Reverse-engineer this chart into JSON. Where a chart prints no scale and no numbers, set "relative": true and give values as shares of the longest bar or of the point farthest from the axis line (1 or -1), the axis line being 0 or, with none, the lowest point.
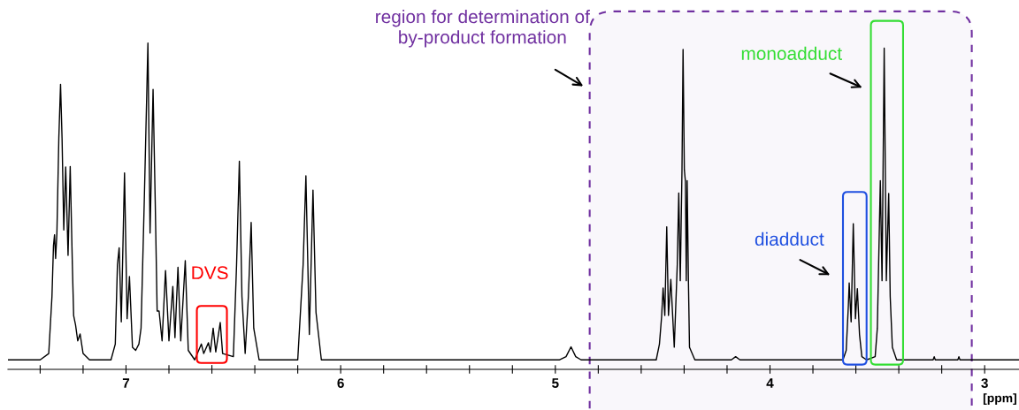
{
  "chart_data": {
    "type": "line",
    "relative": true,
    "xlabel": "[ppm]",
    "xlim": [
      7.55,
      2.84
    ],
    "xticks": [
      {
        "value": 7.4,
        "label": null
      },
      {
        "value": 7.2,
        "label": null
      },
      7,
      {
        "value": 6.8,
        "label": null
      },
      {
        "value": 6.6,
        "label": null
      },
      {
        "value": 6.4,
        "label": null
      },
      {
        "value": 6.2,
        "label": null
      },
      6,
      {
        "value": 5.8,
        "label": null
      },
      {
        "value": 5.6,
        "label": null
      },
      {
        "value": 5.4,
        "label": null
      },
      {
        "value": 5.2,
        "label": null
      },
      5,
      {
        "value": 4.8,
        "label": null
      },
      {
        "value": 4.6,
        "label": null
      },
      {
        "value": 4.4,
        "label": null
      },
      {
        "value": 4.2,
        "label": null
      },
      4,
      {
        "value": 3.8,
        "label": null
      },
      {
        "value": 3.6,
        "label": null
      },
      {
        "value": 3.4,
        "label": null
      },
      {
        "value": 3.2,
        "label": null
      },
      3
    ],
    "tick_labels": "x",
    "grid": false,
    "legend": false,
    "marker": "none",
    "line_style": "solid",
    "x": [
      7.55,
      7.4,
      7.36,
      7.345,
      7.338,
      7.333,
      7.328,
      7.322,
      7.313,
      7.305,
      7.298,
      7.29,
      7.281,
      7.27,
      7.26,
      7.25,
      7.244,
      7.235,
      7.225,
      7.214,
      7.2,
      7.17,
      7.07,
      7.05,
      7.04,
      7.032,
      7.022,
      7.007,
      6.995,
      6.984,
      6.97,
      6.955,
      6.94,
      6.93,
      6.915,
      6.898,
      6.888,
      6.874,
      6.864,
      6.855,
      6.846,
      6.832,
      6.816,
      6.8,
      6.782,
      6.772,
      6.758,
      6.745,
      6.724,
      6.71,
      6.68,
      6.649,
      6.638,
      6.616,
      6.607,
      6.594,
      6.582,
      6.561,
      6.55,
      6.5,
      6.485,
      6.472,
      6.46,
      6.445,
      6.43,
      6.417,
      6.405,
      6.38,
      6.2,
      6.175,
      6.162,
      6.146,
      6.129,
      6.115,
      6.09,
      4.98,
      4.95,
      4.927,
      4.905,
      4.88,
      4.53,
      4.515,
      4.505,
      4.498,
      4.49,
      4.481,
      4.473,
      4.462,
      4.446,
      4.432,
      4.425,
      4.418,
      4.41,
      4.405,
      4.399,
      4.394,
      4.39,
      4.386,
      4.38,
      4.375,
      4.35,
      4.18,
      4.16,
      4.14,
      3.66,
      3.645,
      3.635,
      3.631,
      3.622,
      3.612,
      3.602,
      3.593,
      3.583,
      3.572,
      3.55,
      3.51,
      3.5,
      3.486,
      3.478,
      3.468,
      3.458,
      3.447,
      3.44,
      3.43,
      3.41,
      3.24,
      3.235,
      3.23,
      3.125,
      3.12,
      3.115,
      2.84
    ],
    "series": [
      {
        "color": "#000000",
        "values": [
          0.0,
          0.0,
          0.02,
          0.2,
          0.36,
          0.395,
          0.32,
          0.4,
          0.7,
          0.87,
          0.7,
          0.41,
          0.609,
          0.33,
          0.61,
          0.3,
          0.14,
          0.11,
          0.06,
          0.082,
          0.02,
          0.0,
          0.0,
          0.05,
          0.3,
          0.354,
          0.12,
          0.59,
          0.13,
          0.263,
          0.04,
          0.03,
          0.05,
          0.1,
          0.5,
          1.0,
          0.4,
          0.854,
          0.5,
          0.154,
          0.154,
          0.06,
          0.282,
          0.06,
          0.232,
          0.07,
          0.292,
          0.06,
          0.313,
          0.03,
          0.0,
          0.05,
          0.02,
          0.054,
          0.025,
          0.1,
          0.025,
          0.118,
          0.02,
          0.01,
          0.3,
          0.627,
          0.2,
          0.02,
          0.2,
          0.434,
          0.1,
          0.0,
          0.0,
          0.3,
          0.581,
          0.08,
          0.536,
          0.15,
          0.0,
          0.0,
          0.01,
          0.041,
          0.01,
          0.0,
          0.0,
          0.05,
          0.136,
          0.227,
          0.14,
          0.42,
          0.14,
          0.254,
          0.04,
          0.3,
          0.527,
          0.25,
          0.6,
          0.98,
          0.6,
          0.563,
          0.25,
          0.566,
          0.25,
          0.04,
          0.0,
          0.0,
          0.01,
          0.0,
          0.0,
          0.03,
          0.17,
          0.243,
          0.12,
          0.43,
          0.13,
          0.225,
          0.08,
          0.01,
          0.0,
          0.01,
          0.1,
          0.566,
          0.25,
          0.984,
          0.25,
          0.525,
          0.2,
          0.04,
          0.0,
          0.0,
          0.01,
          0.0,
          0.0,
          0.01,
          0.0,
          0.0
        ]
      }
    ],
    "bands": [
      {
        "axis": "x",
        "from": 4.84,
        "to": 3.06,
        "label": "region for determination of\nby-product formation",
        "color": "#7030a0"
      }
    ],
    "annotations": [
      "DVS",
      "diadduct",
      "monoadduct"
    ]
  }
}
